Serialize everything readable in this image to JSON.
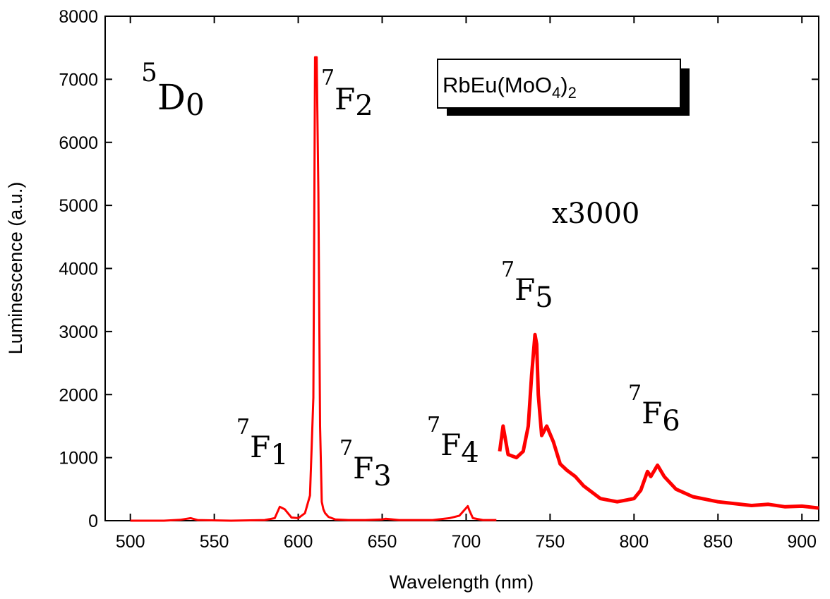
{
  "chart_data": {
    "type": "line",
    "xlabel": "Wavelength (nm)",
    "ylabel": "Luminescence (a.u.)",
    "xlim": [
      485,
      910
    ],
    "ylim": [
      0,
      8000
    ],
    "xticks": [
      500,
      550,
      600,
      650,
      700,
      750,
      800,
      850,
      900
    ],
    "yticks": [
      0,
      1000,
      2000,
      3000,
      4000,
      5000,
      6000,
      7000,
      8000
    ],
    "grid": false,
    "legend": {
      "position": "top-right",
      "text": "RbEu(MoO",
      "subscript": "4",
      "suffix": ")",
      "subscript2": "2"
    },
    "series": [
      {
        "color": "#ff0000",
        "x": [
          500,
          520,
          530,
          536,
          540,
          560,
          580,
          586,
          589,
          592,
          596,
          600,
          604,
          607,
          609,
          610,
          611,
          612,
          613,
          614,
          615,
          616,
          618,
          622,
          630,
          640,
          650,
          652,
          660,
          680,
          690,
          696,
          700,
          701,
          702,
          704,
          710,
          718
        ],
        "y": [
          0,
          0,
          15,
          40,
          10,
          0,
          10,
          40,
          220,
          180,
          50,
          40,
          120,
          400,
          1950,
          7350,
          7350,
          5200,
          1500,
          300,
          180,
          120,
          60,
          20,
          10,
          10,
          20,
          30,
          10,
          10,
          40,
          80,
          200,
          230,
          160,
          40,
          10,
          10
        ]
      },
      {
        "color": "#ff0000",
        "x": [
          720,
          722,
          725,
          730,
          734,
          737,
          739,
          741,
          742,
          743,
          745,
          748,
          752,
          756,
          760,
          765,
          770,
          780,
          790,
          800,
          804,
          808,
          810,
          812,
          814,
          818,
          825,
          835,
          850,
          870,
          880,
          890,
          900,
          910
        ],
        "y": [
          1100,
          1500,
          1050,
          1000,
          1100,
          1500,
          2300,
          2950,
          2800,
          2000,
          1350,
          1500,
          1250,
          900,
          800,
          700,
          550,
          350,
          300,
          350,
          480,
          780,
          700,
          790,
          880,
          700,
          500,
          380,
          300,
          240,
          260,
          220,
          230,
          200
        ]
      }
    ],
    "annotations": [
      {
        "level": "5",
        "term": "D",
        "sub": "0"
      },
      {
        "level": "7",
        "term": "F",
        "sub": "2"
      },
      {
        "level": "7",
        "term": "F",
        "sub": "1"
      },
      {
        "level": "7",
        "term": "F",
        "sub": "3"
      },
      {
        "level": "7",
        "term": "F",
        "sub": "4"
      },
      {
        "level": "7",
        "term": "F",
        "sub": "5"
      },
      {
        "level": "7",
        "term": "F",
        "sub": "6"
      },
      {
        "text": "x3000"
      }
    ]
  }
}
